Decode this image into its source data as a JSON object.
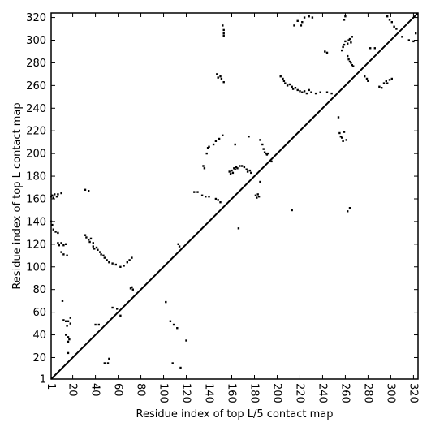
{
  "chart_data": {
    "type": "scatter",
    "title": "",
    "xlabel": "Residue index of top L/5 contact map",
    "ylabel": "Residue index of top L contact map",
    "xlim": [
      1,
      324
    ],
    "ylim": [
      1,
      324
    ],
    "x_ticks": [
      1,
      20,
      40,
      60,
      80,
      100,
      120,
      140,
      160,
      180,
      200,
      220,
      240,
      260,
      280,
      300,
      320
    ],
    "y_ticks": [
      1,
      20,
      40,
      60,
      80,
      100,
      120,
      140,
      160,
      180,
      200,
      220,
      240,
      260,
      280,
      300,
      320
    ],
    "x_tick_rotation": "vertical",
    "grid": false,
    "legend": "none",
    "colors": {
      "points": "#000000",
      "diagonal": "#000000",
      "frame": "#000000"
    },
    "diagonal": {
      "from": [
        1,
        1
      ],
      "to": [
        324,
        324
      ]
    },
    "series": [
      {
        "points": [
          [
            1,
            162
          ],
          [
            2,
            163
          ],
          [
            3,
            161
          ],
          [
            4,
            164
          ],
          [
            6,
            162
          ],
          [
            7,
            164
          ],
          [
            10,
            165
          ],
          [
            1,
            140
          ],
          [
            2,
            137
          ],
          [
            3,
            133
          ],
          [
            5,
            131
          ],
          [
            7,
            130
          ],
          [
            7,
            121
          ],
          [
            8,
            119
          ],
          [
            10,
            121
          ],
          [
            12,
            119
          ],
          [
            14,
            120
          ],
          [
            10,
            113
          ],
          [
            12,
            111
          ],
          [
            15,
            110
          ],
          [
            11,
            70
          ],
          [
            12,
            53
          ],
          [
            14,
            52
          ],
          [
            15,
            48
          ],
          [
            16,
            52
          ],
          [
            18,
            55
          ],
          [
            18,
            50
          ],
          [
            14,
            40
          ],
          [
            16,
            38
          ],
          [
            17,
            36
          ],
          [
            16,
            34
          ],
          [
            16,
            24
          ],
          [
            31,
            168
          ],
          [
            34,
            167
          ],
          [
            31,
            128
          ],
          [
            32,
            126
          ],
          [
            34,
            124
          ],
          [
            35,
            122
          ],
          [
            36,
            125
          ],
          [
            38,
            121
          ],
          [
            38,
            118
          ],
          [
            39,
            116
          ],
          [
            41,
            117
          ],
          [
            42,
            115
          ],
          [
            44,
            113
          ],
          [
            45,
            111
          ],
          [
            47,
            110
          ],
          [
            48,
            108
          ],
          [
            50,
            106
          ],
          [
            52,
            104
          ],
          [
            55,
            103
          ],
          [
            58,
            102
          ],
          [
            62,
            100
          ],
          [
            65,
            101
          ],
          [
            68,
            104
          ],
          [
            70,
            106
          ],
          [
            72,
            108
          ],
          [
            72,
            82
          ],
          [
            73,
            80
          ],
          [
            71,
            81
          ],
          [
            40,
            49
          ],
          [
            43,
            49
          ],
          [
            48,
            15
          ],
          [
            51,
            15
          ],
          [
            52,
            19
          ],
          [
            55,
            64
          ],
          [
            59,
            63
          ],
          [
            62,
            57
          ],
          [
            102,
            69
          ],
          [
            106,
            52
          ],
          [
            109,
            49
          ],
          [
            112,
            46
          ],
          [
            108,
            15
          ],
          [
            115,
            11
          ],
          [
            120,
            35
          ],
          [
            113,
            120
          ],
          [
            114,
            118
          ],
          [
            127,
            166
          ],
          [
            130,
            166
          ],
          [
            134,
            163
          ],
          [
            137,
            162
          ],
          [
            140,
            162
          ],
          [
            146,
            160
          ],
          [
            148,
            159
          ],
          [
            150,
            157
          ],
          [
            135,
            189
          ],
          [
            136,
            187
          ],
          [
            138,
            200
          ],
          [
            139,
            205
          ],
          [
            140,
            206
          ],
          [
            144,
            208
          ],
          [
            146,
            211
          ],
          [
            149,
            213
          ],
          [
            152,
            216
          ],
          [
            147,
            270
          ],
          [
            148,
            267
          ],
          [
            150,
            268
          ],
          [
            151,
            266
          ],
          [
            153,
            263
          ],
          [
            152,
            313
          ],
          [
            153,
            309
          ],
          [
            153,
            306
          ],
          [
            153,
            304
          ],
          [
            158,
            184
          ],
          [
            159,
            182
          ],
          [
            160,
            185
          ],
          [
            161,
            183
          ],
          [
            162,
            187
          ],
          [
            163,
            186
          ],
          [
            164,
            188
          ],
          [
            165,
            187
          ],
          [
            167,
            189
          ],
          [
            169,
            189
          ],
          [
            171,
            188
          ],
          [
            173,
            186
          ],
          [
            174,
            184
          ],
          [
            176,
            185
          ],
          [
            177,
            183
          ],
          [
            163,
            208
          ],
          [
            166,
            134
          ],
          [
            175,
            215
          ],
          [
            181,
            163
          ],
          [
            182,
            161
          ],
          [
            183,
            164
          ],
          [
            184,
            162
          ],
          [
            185,
            175
          ],
          [
            185,
            212
          ],
          [
            187,
            208
          ],
          [
            188,
            204
          ],
          [
            189,
            201
          ],
          [
            190,
            200
          ],
          [
            191,
            199
          ],
          [
            192,
            200
          ],
          [
            195,
            193
          ],
          [
            203,
            268
          ],
          [
            205,
            266
          ],
          [
            206,
            264
          ],
          [
            207,
            262
          ],
          [
            209,
            260
          ],
          [
            211,
            261
          ],
          [
            213,
            259
          ],
          [
            214,
            257
          ],
          [
            216,
            258
          ],
          [
            218,
            256
          ],
          [
            220,
            255
          ],
          [
            222,
            254
          ],
          [
            224,
            255
          ],
          [
            226,
            253
          ],
          [
            228,
            256
          ],
          [
            230,
            254
          ],
          [
            234,
            253
          ],
          [
            238,
            254
          ],
          [
            244,
            254
          ],
          [
            248,
            253
          ],
          [
            213,
            150
          ],
          [
            215,
            313
          ],
          [
            218,
            317
          ],
          [
            221,
            313
          ],
          [
            222,
            316
          ],
          [
            224,
            320
          ],
          [
            228,
            321
          ],
          [
            231,
            320
          ],
          [
            242,
            290
          ],
          [
            244,
            289
          ],
          [
            254,
            232
          ],
          [
            255,
            218
          ],
          [
            256,
            215
          ],
          [
            257,
            214
          ],
          [
            258,
            211
          ],
          [
            259,
            219
          ],
          [
            261,
            212
          ],
          [
            257,
            291
          ],
          [
            258,
            294
          ],
          [
            259,
            296
          ],
          [
            260,
            299
          ],
          [
            262,
            297
          ],
          [
            263,
            300
          ],
          [
            264,
            301
          ],
          [
            265,
            298
          ],
          [
            266,
            303
          ],
          [
            259,
            318
          ],
          [
            260,
            321
          ],
          [
            262,
            286
          ],
          [
            263,
            283
          ],
          [
            264,
            281
          ],
          [
            265,
            280
          ],
          [
            266,
            278
          ],
          [
            267,
            277
          ],
          [
            262,
            149
          ],
          [
            264,
            152
          ],
          [
            277,
            268
          ],
          [
            279,
            266
          ],
          [
            280,
            264
          ],
          [
            282,
            293
          ],
          [
            286,
            293
          ],
          [
            290,
            259
          ],
          [
            292,
            258
          ],
          [
            294,
            262
          ],
          [
            296,
            264
          ],
          [
            297,
            262
          ],
          [
            299,
            265
          ],
          [
            301,
            266
          ],
          [
            297,
            321
          ],
          [
            299,
            318
          ],
          [
            301,
            316
          ],
          [
            303,
            312
          ],
          [
            305,
            310
          ],
          [
            310,
            303
          ],
          [
            316,
            300
          ],
          [
            320,
            299
          ],
          [
            322,
            306
          ]
        ]
      }
    ]
  }
}
